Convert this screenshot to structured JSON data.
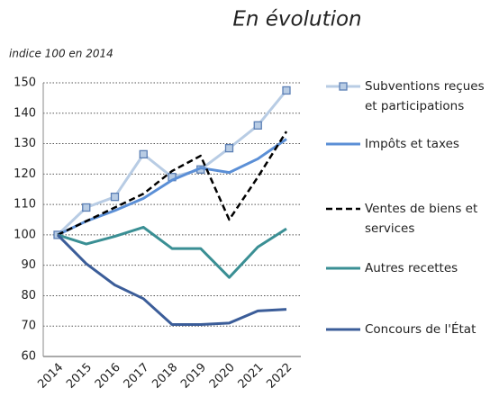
{
  "chart_data": {
    "type": "line",
    "title": "En évolution",
    "subtitle": "indice 100 en 2014",
    "categories": [
      "2014",
      "2015",
      "2016",
      "2017",
      "2018",
      "2019",
      "2020",
      "2021",
      "2022"
    ],
    "series": [
      {
        "name": "Subventions reçues et participations",
        "color": "#b8cce4",
        "marker": "square",
        "marker_color": "#5b7fb5",
        "values": [
          100,
          109,
          112.5,
          126.5,
          119,
          121.5,
          128.5,
          136,
          147.5
        ]
      },
      {
        "name": "Impôts et taxes",
        "color": "#5b8fd6",
        "values": [
          100,
          104.5,
          108,
          112,
          118,
          122,
          120.5,
          125,
          131.5
        ]
      },
      {
        "name": "Ventes de biens et services",
        "color": "#000000",
        "dashed": true,
        "values": [
          100,
          104.5,
          109,
          113.5,
          121,
          126,
          105,
          119,
          134
        ]
      },
      {
        "name": "Autres recettes",
        "color": "#3a8f94",
        "values": [
          100,
          97,
          99.5,
          102.5,
          95.5,
          95.5,
          86,
          96,
          102
        ]
      },
      {
        "name": "Concours de l'État",
        "color": "#3b5d99",
        "values": [
          100,
          90.5,
          83.5,
          79,
          70.5,
          70.5,
          71,
          75,
          75.5
        ]
      }
    ],
    "ylim": [
      60,
      150
    ],
    "yticks": [
      60,
      70,
      80,
      90,
      100,
      110,
      120,
      130,
      140,
      150
    ],
    "grid": true
  }
}
